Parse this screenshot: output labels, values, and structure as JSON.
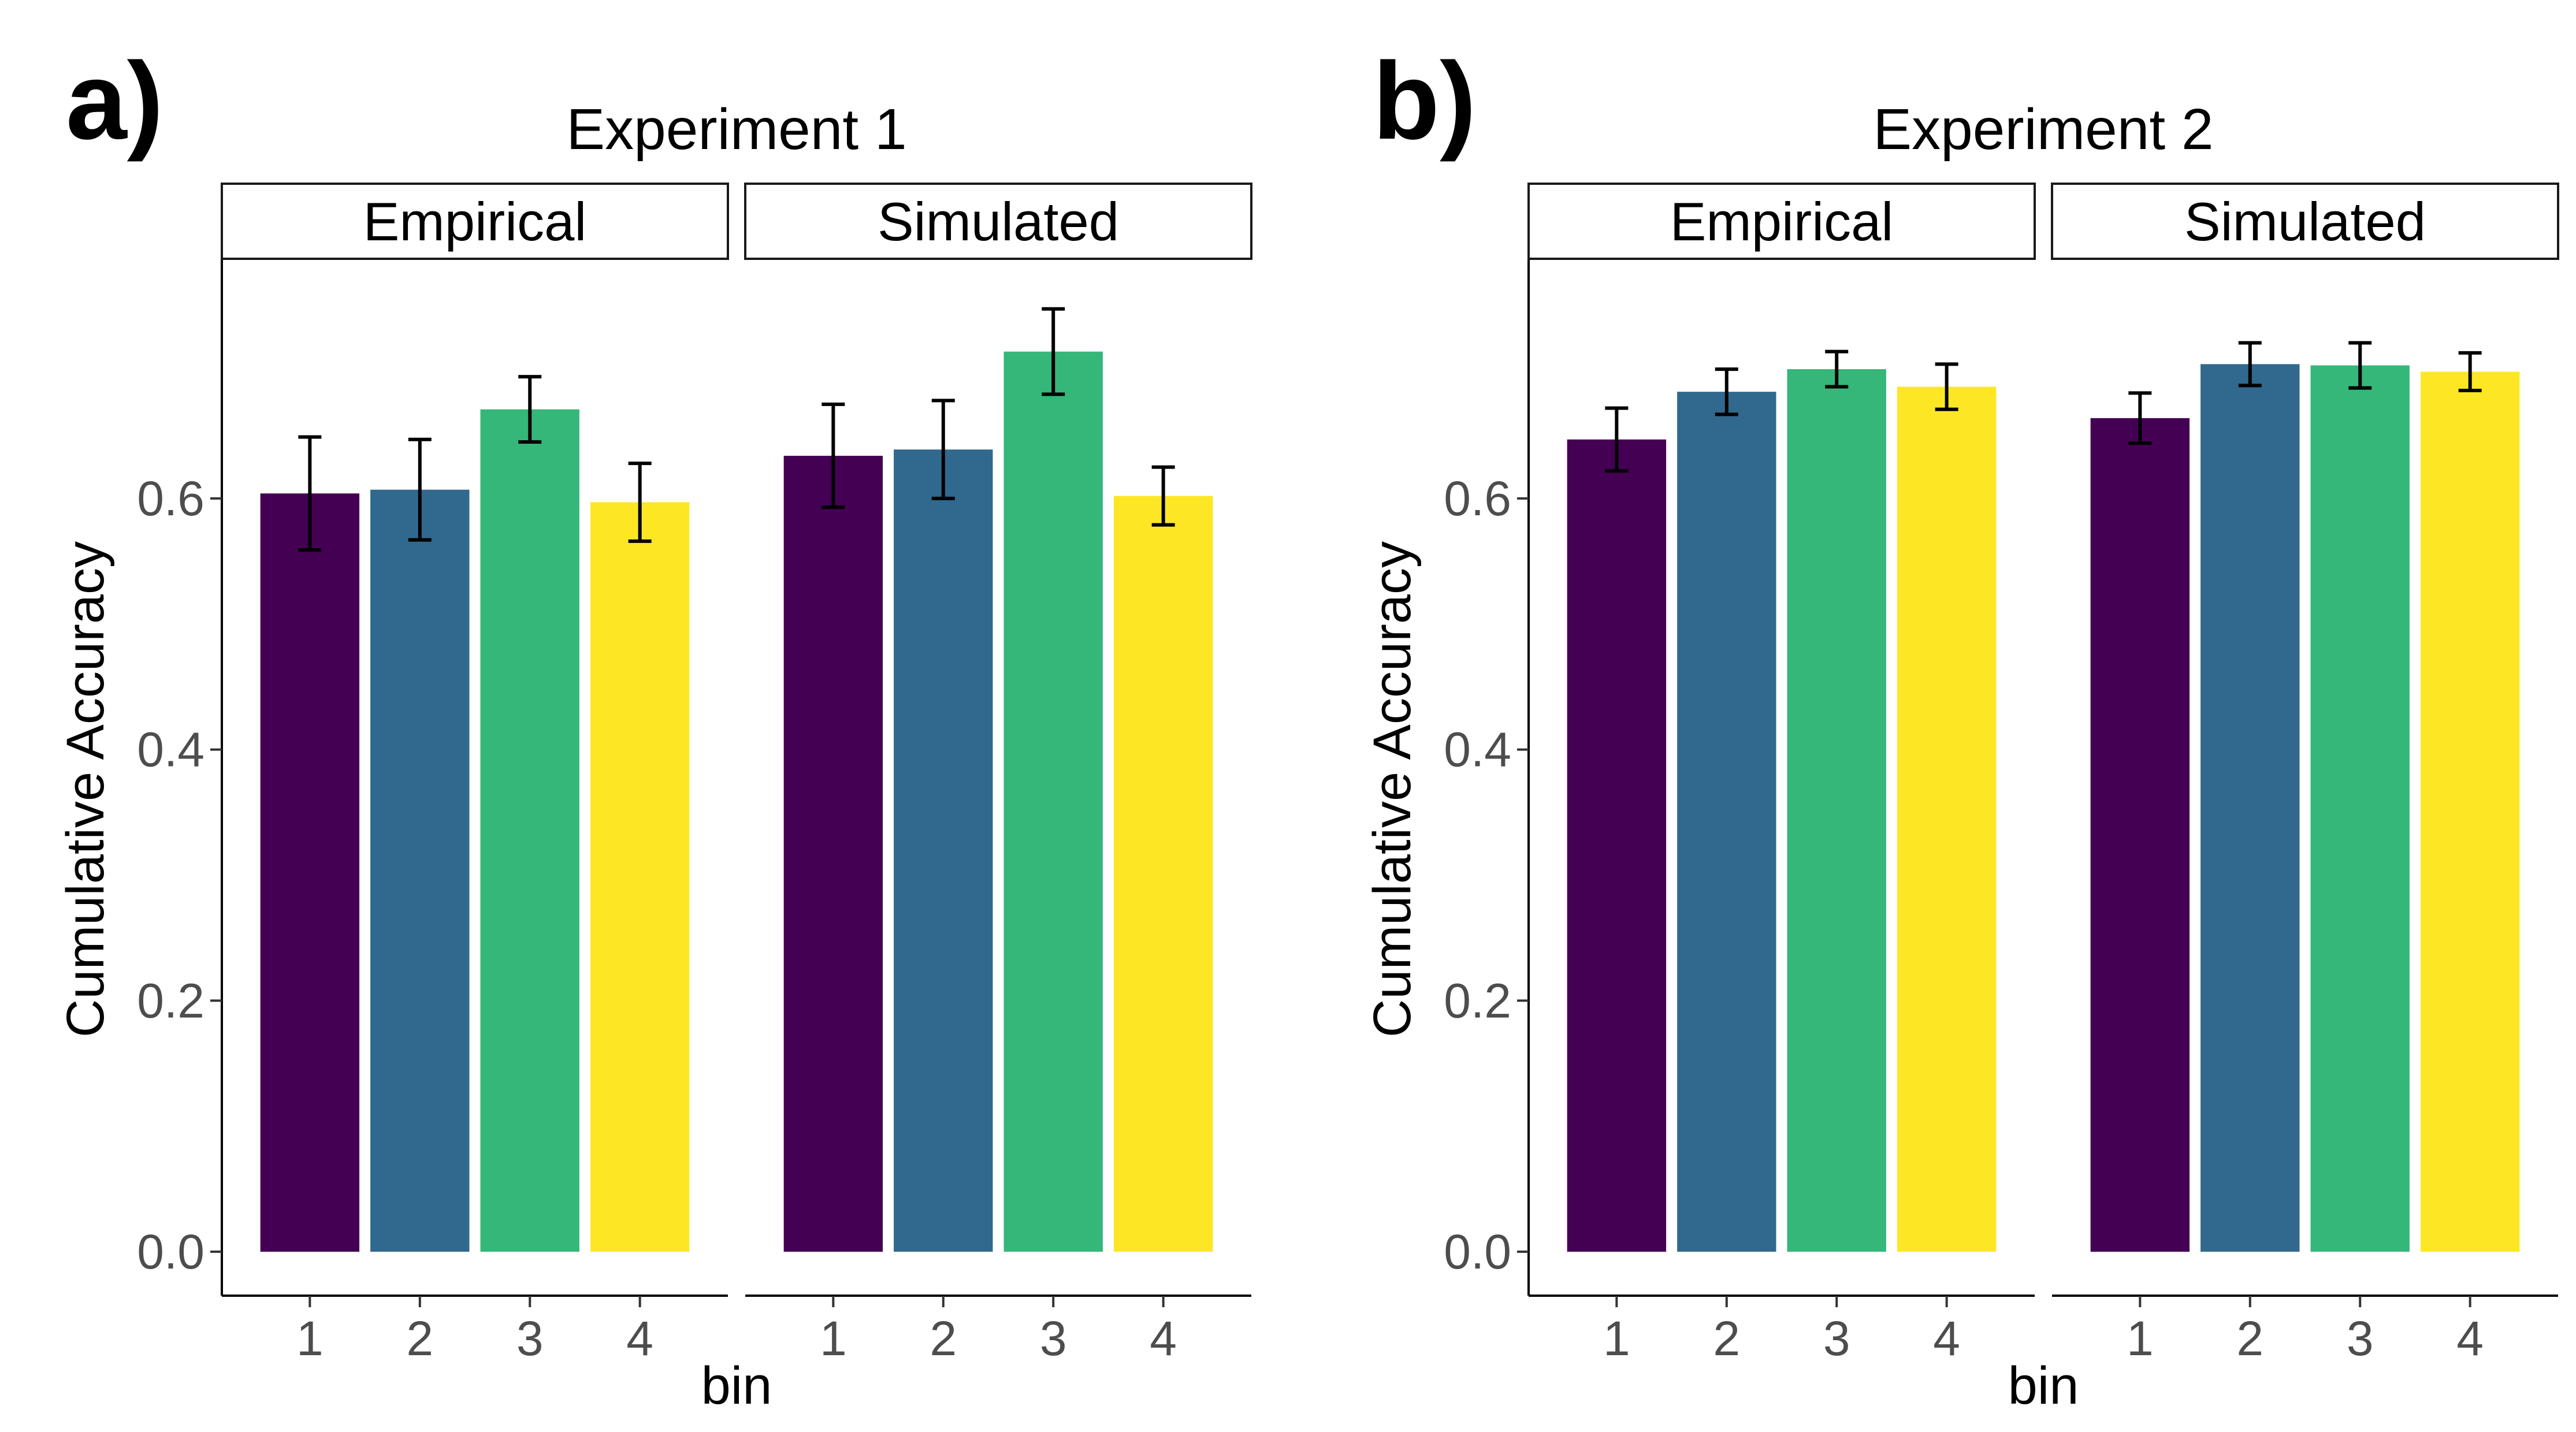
{
  "figure": {
    "panels": [
      {
        "letter": "a)",
        "title": "Experiment 1"
      },
      {
        "letter": "b)",
        "title": "Experiment 2"
      }
    ]
  },
  "chart_data": [
    {
      "type": "bar",
      "panel_letter": "a)",
      "title": "Experiment 1",
      "xlabel": "bin",
      "ylabel": "Cumulative Accuracy",
      "ylim": [
        -0.035,
        0.79
      ],
      "yticks": [
        "0.0",
        "0.2",
        "0.4",
        "0.6"
      ],
      "yticks_values": [
        0,
        0.2,
        0.4,
        0.6
      ],
      "grid": false,
      "legend": "none",
      "categories": [
        "1",
        "2",
        "3",
        "4"
      ],
      "colors": [
        "#440154",
        "#31688E",
        "#35B779",
        "#FDE725"
      ],
      "facets": [
        {
          "label": "Empirical",
          "values": [
            0.604,
            0.607,
            0.671,
            0.597
          ],
          "errors": [
            0.045,
            0.04,
            0.026,
            0.031
          ]
        },
        {
          "label": "Simulated",
          "values": [
            0.634,
            0.639,
            0.717,
            0.602
          ],
          "errors": [
            0.041,
            0.039,
            0.034,
            0.023
          ]
        }
      ]
    },
    {
      "type": "bar",
      "panel_letter": "b)",
      "title": "Experiment 2",
      "xlabel": "bin",
      "ylabel": "Cumulative Accuracy",
      "ylim": [
        -0.035,
        0.79
      ],
      "yticks": [
        "0.0",
        "0.2",
        "0.4",
        "0.6"
      ],
      "yticks_values": [
        0,
        0.2,
        0.4,
        0.6
      ],
      "grid": false,
      "legend": "none",
      "categories": [
        "1",
        "2",
        "3",
        "4"
      ],
      "colors": [
        "#440154",
        "#31688E",
        "#35B779",
        "#FDE725"
      ],
      "facets": [
        {
          "label": "Empirical",
          "values": [
            0.647,
            0.685,
            0.703,
            0.689
          ],
          "errors": [
            0.025,
            0.018,
            0.014,
            0.018
          ]
        },
        {
          "label": "Simulated",
          "values": [
            0.664,
            0.707,
            0.706,
            0.701
          ],
          "errors": [
            0.02,
            0.017,
            0.018,
            0.015
          ]
        }
      ]
    }
  ]
}
